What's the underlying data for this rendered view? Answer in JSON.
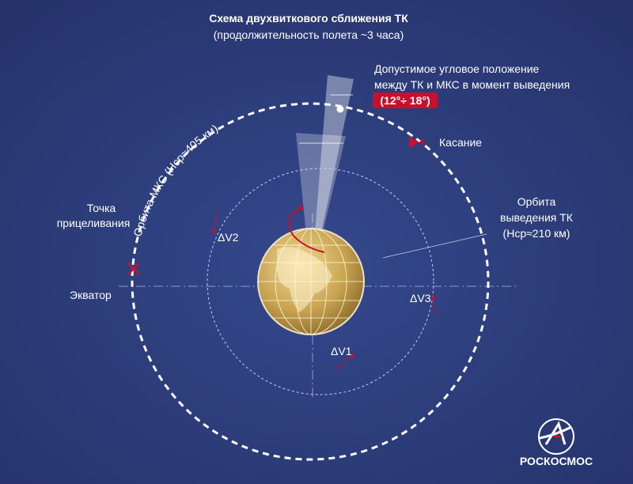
{
  "header": {
    "title": "Схема двухвиткового сближения ТК",
    "subtitle": "(продолжительность полета ~3 часа)"
  },
  "annotation": {
    "lines": [
      "Допустимое угловое положение",
      "между ТК и МКС  в момент выведения"
    ],
    "badge": "(12°÷ 18°)"
  },
  "labels": {
    "contact": "Касание",
    "iss_orbit": "Орбита МКС (Нср≈405 км)",
    "aim_point": [
      "Точка",
      "прицеливания"
    ],
    "insertion_orbit": [
      "Орбита",
      "выведения ТК",
      "(Нср≈210 км)"
    ],
    "equator": "Экватор",
    "dv2": "ΔV2",
    "dv3": "ΔV3",
    "dv1": "ΔV1"
  },
  "logo": {
    "text": "РОСКОСМОС"
  }
}
